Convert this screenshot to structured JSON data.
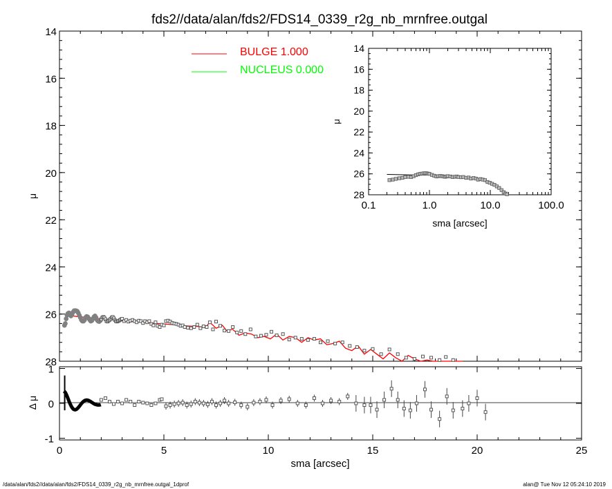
{
  "title": "fds2//data/alan/fds2/FDS14_0339_r2g_nb_mrnfree.outgal",
  "footer_left": "/data/alan/fds2//data/alan/fds2/FDS14_0339_r2g_nb_mrnfree.outgal_1dprof",
  "footer_right": "alan@  Tue Nov 12 05:24:10 2019",
  "legend": [
    {
      "label": "BULGE  1.000",
      "color": "#ff0000"
    },
    {
      "label": "NUCLEUS  0.000",
      "color": "#00ff00"
    }
  ],
  "colors": {
    "data": "#808080",
    "model": "#ff0000",
    "residual": "#000000"
  },
  "chart_data": [
    {
      "id": "main",
      "type": "scatter",
      "xlabel": "sma [arcsec]",
      "ylabel": "μ",
      "xlim": [
        0,
        25
      ],
      "ylim": [
        28,
        14
      ],
      "y_inverted": true,
      "xticks": [
        "0",
        "5",
        "10",
        "15",
        "20",
        "25"
      ],
      "yticks": [
        "14",
        "16",
        "18",
        "20",
        "22",
        "24",
        "26",
        "28"
      ],
      "series": [
        {
          "name": "BULGE  1.000",
          "type": "line",
          "x": [
            0.3,
            1,
            2,
            3,
            4,
            5,
            5.5,
            6,
            6.5,
            7,
            7.2,
            7.5,
            7.8,
            8,
            8.3,
            8.6,
            8.9,
            9.2,
            9.5,
            9.8,
            10.1,
            10.4,
            10.7,
            11,
            11.3,
            11.6,
            11.9,
            12.2,
            12.5,
            12.8,
            13.1,
            13.4,
            13.7,
            14,
            14.3,
            14.6,
            14.9,
            15.2,
            15.5,
            15.8,
            16.1,
            16.4,
            16.7,
            17,
            17.3,
            17.6,
            17.9,
            18.2,
            18.5,
            18.8,
            19.1,
            19.3
          ],
          "y": [
            26.05,
            26.12,
            26.2,
            26.28,
            26.35,
            26.42,
            26.45,
            26.5,
            26.52,
            26.55,
            26.35,
            26.6,
            26.48,
            26.7,
            26.65,
            26.9,
            26.8,
            26.85,
            27.0,
            26.95,
            27.05,
            26.85,
            27.1,
            26.95,
            27.0,
            27.2,
            27.0,
            27.1,
            27.05,
            27.3,
            27.25,
            27.15,
            27.45,
            27.55,
            27.35,
            27.7,
            27.5,
            27.7,
            27.9,
            27.65,
            27.85,
            28.0,
            27.75,
            27.9,
            28.05,
            27.95,
            28.1,
            28.0,
            28.2,
            28.05,
            28.1,
            28.1
          ]
        },
        {
          "name": "NUCLEUS  0.000",
          "type": "line",
          "x": [],
          "y": []
        },
        {
          "name": "data",
          "type": "scatter",
          "x": [
            0.24,
            0.28,
            0.32,
            0.36,
            0.4,
            0.45,
            0.5,
            0.55,
            0.6,
            0.65,
            0.7,
            0.75,
            0.8,
            0.85,
            0.9,
            0.95,
            1.0,
            1.05,
            1.1,
            1.15,
            1.2,
            1.25,
            1.3,
            1.35,
            1.4,
            1.45,
            1.5,
            1.55,
            1.6,
            1.65,
            1.7,
            1.75,
            1.8,
            1.85,
            1.9,
            1.95,
            2.0,
            2.05,
            2.1,
            2.15,
            2.2,
            2.25,
            2.3,
            2.35,
            2.4,
            2.45,
            2.5,
            2.55,
            2.6,
            2.65,
            2.7,
            2.75,
            2.8,
            2.85,
            2.9,
            2.95,
            3.0,
            3.1,
            3.2,
            3.3,
            3.4,
            3.5,
            3.6,
            3.7,
            3.8,
            3.9,
            4.0,
            4.1,
            4.2,
            4.3,
            4.4,
            4.5,
            4.6,
            4.7,
            4.8,
            4.9,
            5.0,
            5.1,
            5.2,
            5.3,
            5.4,
            5.5,
            5.6,
            5.7,
            5.8,
            5.9,
            6.0,
            6.15,
            6.3,
            6.45,
            6.6,
            6.75,
            6.9,
            7.05,
            7.2,
            7.35,
            7.5,
            7.7,
            7.9,
            8.1,
            8.3,
            8.5,
            8.7,
            8.9,
            9.15,
            9.4,
            9.65,
            9.9,
            10.15,
            10.4,
            10.7,
            11.0,
            11.3,
            11.6,
            11.9,
            12.2,
            12.5,
            12.85,
            13.2,
            13.55,
            13.9,
            14.25,
            14.6,
            15.0,
            15.4,
            15.8,
            16.2,
            16.6,
            17.0,
            17.4,
            17.8,
            18.2,
            18.5,
            18.85
          ],
          "y": [
            26.48,
            26.4,
            26.2,
            26.05,
            25.98,
            25.95,
            26.0,
            26.08,
            26.02,
            25.92,
            25.86,
            25.85,
            25.86,
            25.88,
            25.95,
            26.05,
            26.15,
            26.25,
            26.3,
            26.3,
            26.25,
            26.15,
            26.1,
            26.12,
            26.18,
            26.25,
            26.3,
            26.28,
            26.2,
            26.12,
            26.08,
            26.15,
            26.25,
            26.3,
            26.32,
            26.28,
            26.22,
            26.15,
            26.12,
            26.15,
            26.22,
            26.3,
            26.32,
            26.28,
            26.25,
            26.2,
            26.15,
            26.12,
            26.18,
            26.25,
            26.3,
            26.32,
            26.3,
            26.28,
            26.25,
            26.22,
            26.2,
            26.3,
            26.25,
            26.32,
            26.28,
            26.25,
            26.3,
            26.35,
            26.28,
            26.3,
            26.38,
            26.3,
            26.35,
            26.3,
            26.42,
            26.48,
            26.35,
            26.5,
            26.55,
            26.45,
            26.48,
            26.3,
            26.28,
            26.32,
            26.38,
            26.4,
            26.42,
            26.45,
            26.5,
            26.48,
            26.55,
            26.58,
            26.6,
            26.55,
            26.45,
            26.6,
            26.52,
            26.55,
            26.35,
            26.65,
            26.32,
            26.5,
            26.7,
            26.72,
            26.55,
            26.78,
            26.72,
            26.85,
            26.65,
            26.95,
            26.92,
            26.88,
            26.75,
            26.9,
            26.85,
            27.08,
            27.0,
            27.05,
            27.1,
            27.05,
            27.2,
            27.15,
            27.25,
            27.2,
            27.35,
            27.4,
            27.55,
            27.48,
            27.7,
            27.5,
            27.7,
            27.85,
            27.9,
            27.8,
            27.85,
            27.95,
            27.82,
            27.95
          ]
        }
      ]
    },
    {
      "id": "inset",
      "type": "scatter",
      "xlabel": "sma [arcsec]",
      "ylabel": "μ",
      "x_scale": "log",
      "xlim": [
        0.1,
        100.0
      ],
      "ylim": [
        28,
        14
      ],
      "y_inverted": true,
      "xticks": [
        "0.1",
        "1.0",
        "10.0",
        "100.0"
      ],
      "yticks": [
        "14",
        "16",
        "18",
        "20",
        "22",
        "24",
        "26",
        "28"
      ],
      "series": [
        {
          "name": "model",
          "type": "line",
          "x": [
            0.2,
            0.5,
            1,
            2,
            3,
            5,
            7,
            9,
            11,
            13,
            15,
            17,
            18.5
          ],
          "y": [
            26.05,
            26.1,
            26.12,
            26.2,
            26.28,
            26.42,
            26.55,
            26.85,
            27.05,
            27.3,
            27.55,
            27.8,
            28.0
          ]
        },
        {
          "name": "data",
          "type": "scatter",
          "x": [
            0.22,
            0.25,
            0.28,
            0.32,
            0.36,
            0.4,
            0.45,
            0.5,
            0.55,
            0.6,
            0.65,
            0.7,
            0.75,
            0.8,
            0.85,
            0.9,
            0.95,
            1.0,
            1.1,
            1.2,
            1.3,
            1.4,
            1.5,
            1.6,
            1.7,
            1.8,
            1.9,
            2.0,
            2.2,
            2.4,
            2.6,
            2.8,
            3.0,
            3.3,
            3.6,
            4.0,
            4.4,
            4.8,
            5.3,
            5.8,
            6.3,
            6.9,
            7.5,
            8.2,
            9.0,
            9.8,
            10.7,
            11.7,
            12.8,
            14.0,
            15.3,
            16.6,
            17.8,
            18.8
          ],
          "y": [
            26.6,
            26.55,
            26.48,
            26.42,
            26.38,
            26.3,
            26.28,
            26.3,
            26.22,
            26.12,
            26.05,
            26.0,
            25.98,
            25.95,
            25.94,
            25.95,
            25.98,
            26.0,
            26.1,
            26.18,
            26.25,
            26.22,
            26.2,
            26.22,
            26.25,
            26.28,
            26.25,
            26.22,
            26.25,
            26.3,
            26.28,
            26.25,
            26.3,
            26.32,
            26.3,
            26.38,
            26.35,
            26.45,
            26.4,
            26.45,
            26.55,
            26.5,
            26.55,
            26.6,
            26.78,
            26.85,
            26.95,
            27.05,
            27.2,
            27.35,
            27.55,
            27.75,
            27.88,
            27.95
          ]
        }
      ]
    },
    {
      "id": "residuals",
      "type": "scatter",
      "xlabel": "sma [arcsec]",
      "ylabel": "Δ μ",
      "xlim": [
        0,
        25
      ],
      "ylim": [
        -1.05,
        1.05
      ],
      "xticks": [
        "0",
        "5",
        "10",
        "15",
        "20",
        "25"
      ],
      "yticks": [
        "1",
        "0",
        "-1"
      ],
      "zero_line": 0,
      "series": [
        {
          "name": "residual",
          "type": "scatter",
          "x": [
            2.0,
            2.2,
            2.4,
            2.6,
            2.8,
            3.0,
            3.2,
            3.4,
            3.6,
            3.8,
            4.0,
            4.2,
            4.4,
            4.6,
            4.8,
            4.9,
            5.1,
            5.3,
            5.5,
            5.7,
            5.9,
            6.1,
            6.3,
            6.5,
            6.7,
            6.9,
            7.1,
            7.3,
            7.5,
            7.7,
            7.9,
            8.1,
            8.4,
            8.7,
            9.0,
            9.3,
            9.6,
            9.9,
            10.2,
            10.6,
            11.0,
            11.4,
            11.8,
            12.2,
            12.6,
            13.0,
            13.4,
            13.8,
            14.2,
            14.6,
            14.9,
            15.2,
            15.55,
            15.9,
            16.2,
            16.5,
            16.8,
            17.1,
            17.5,
            17.8,
            18.2,
            18.55,
            18.85,
            19.3,
            19.6,
            20.0,
            20.4
          ],
          "y": [
            0.1,
            0.15,
            0.05,
            -0.02,
            0.05,
            0.0,
            0.1,
            0.05,
            -0.05,
            0.05,
            0.02,
            0.0,
            -0.05,
            0.0,
            0.1,
            0.12,
            -0.08,
            -0.05,
            -0.02,
            0.0,
            0.02,
            -0.05,
            -0.02,
            0.05,
            0.02,
            0.0,
            -0.03,
            0.05,
            -0.05,
            0.0,
            0.08,
            0.0,
            0.03,
            -0.05,
            -0.1,
            0.02,
            0.05,
            0.1,
            -0.05,
            0.08,
            0.12,
            0.0,
            -0.05,
            0.15,
            0.0,
            0.08,
            0.05,
            0.2,
            0.0,
            -0.05,
            -0.05,
            -0.18,
            0.1,
            0.42,
            0.1,
            -0.15,
            -0.2,
            0.0,
            0.4,
            -0.18,
            -0.45,
            0.2,
            -0.2,
            -0.15,
            0.0,
            0.15,
            -0.25
          ]
        }
      ]
    }
  ]
}
